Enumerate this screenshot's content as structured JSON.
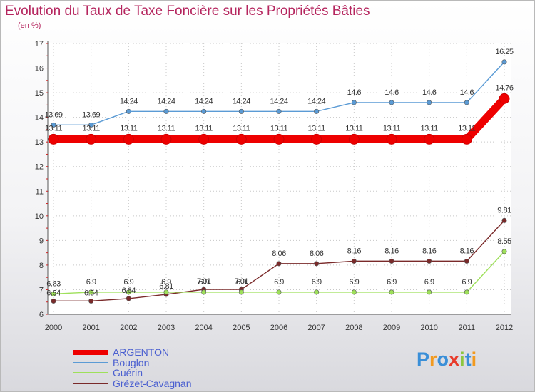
{
  "chart_data": {
    "type": "line",
    "title": "Evolution du Taux de Taxe Foncière sur les Propriétés Bâties",
    "subtitle": "(en %)",
    "categories": [
      "2000",
      "2001",
      "2002",
      "2003",
      "2004",
      "2005",
      "2006",
      "2007",
      "2008",
      "2009",
      "2010",
      "2011",
      "2012"
    ],
    "ylim": [
      6,
      17
    ],
    "yticks": [
      "6",
      "7",
      "8",
      "9",
      "10",
      "11",
      "12",
      "13",
      "14",
      "15",
      "16",
      "17"
    ],
    "series": [
      {
        "name": "ARGENTON",
        "color": "#ee0000",
        "values": [
          13.11,
          13.11,
          13.11,
          13.11,
          13.11,
          13.11,
          13.11,
          13.11,
          13.11,
          13.11,
          13.11,
          13.11,
          14.76
        ],
        "labels": [
          "13.11",
          "13.11",
          "13.11",
          "13.11",
          "13.11",
          "13.11",
          "13.11",
          "13.11",
          "13.11",
          "13.11",
          "13.11",
          "13.11",
          "14.76"
        ]
      },
      {
        "name": "Bouglon",
        "color": "#5b9bd5",
        "values": [
          13.69,
          13.69,
          14.24,
          14.24,
          14.24,
          14.24,
          14.24,
          14.24,
          14.6,
          14.6,
          14.6,
          14.6,
          16.25
        ],
        "labels": [
          "13.69",
          "13.69",
          "14.24",
          "14.24",
          "14.24",
          "14.24",
          "14.24",
          "14.24",
          "14.6",
          "14.6",
          "14.6",
          "14.6",
          "16.25"
        ]
      },
      {
        "name": "Guérin",
        "color": "#9ee05a",
        "values": [
          6.83,
          6.9,
          6.9,
          6.9,
          6.9,
          6.9,
          6.9,
          6.9,
          6.9,
          6.9,
          6.9,
          6.9,
          8.55
        ],
        "labels": [
          "6.83",
          "6.9",
          "6.9",
          "6.9",
          "6.9",
          "6.9",
          "6.9",
          "6.9",
          "6.9",
          "6.9",
          "6.9",
          "6.9",
          "8.55"
        ]
      },
      {
        "name": "Grézet-Cavagnan",
        "color": "#7a2a2a",
        "values": [
          6.54,
          6.54,
          6.64,
          6.81,
          7.01,
          7.01,
          8.06,
          8.06,
          8.16,
          8.16,
          8.16,
          8.16,
          9.81
        ],
        "labels": [
          "6.54",
          "6.54",
          "6.64",
          "6.81",
          "7.01",
          "7.01",
          "8.06",
          "8.06",
          "8.16",
          "8.16",
          "8.16",
          "8.16",
          "9.81"
        ]
      }
    ]
  },
  "logo": {
    "letters": [
      "P",
      "r",
      "o",
      "x",
      "i",
      "t",
      "i"
    ],
    "colors": [
      "#3a8fd8",
      "#f29a1f",
      "#3a8fd8",
      "#e83a2a",
      "#8cc63f",
      "#3a8fd8",
      "#f29a1f"
    ]
  }
}
